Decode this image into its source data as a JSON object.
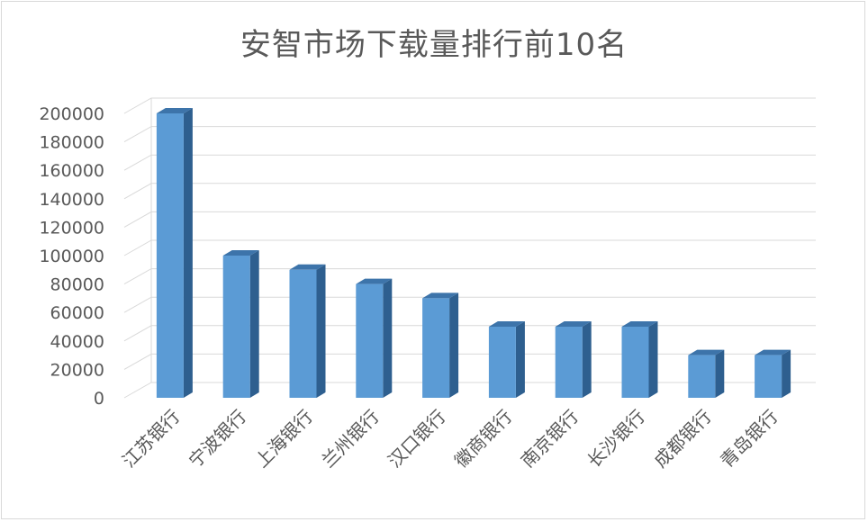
{
  "chart_data": {
    "type": "bar",
    "title": "安智市场下载量排行前10名",
    "categories": [
      "江苏银行",
      "宁波银行",
      "上海银行",
      "兰州银行",
      "汉口银行",
      "徽商银行",
      "南京银行",
      "长沙银行",
      "成都银行",
      "青岛银行"
    ],
    "values": [
      200000,
      100000,
      90000,
      80000,
      70000,
      50000,
      50000,
      50000,
      30000,
      30000
    ],
    "ylim": [
      0,
      200000
    ],
    "yticks": [
      0,
      20000,
      40000,
      60000,
      80000,
      100000,
      120000,
      140000,
      160000,
      180000,
      200000
    ],
    "grid": true,
    "bar_color": "#5b9bd5",
    "bar_side_color": "#2e5f8f",
    "bar_top_color": "#3d74aa"
  }
}
